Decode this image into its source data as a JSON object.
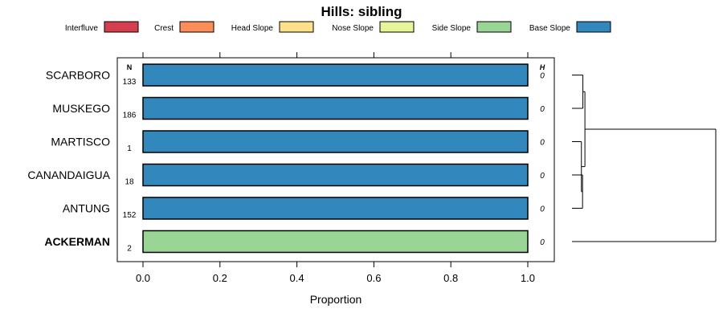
{
  "chart_data": {
    "type": "bar",
    "title": "Hills: sibling",
    "xlabel": "Proportion",
    "ylabel": "",
    "xlim": [
      -0.06,
      1.07
    ],
    "xticks": [
      0.0,
      0.2,
      0.4,
      0.6,
      0.8,
      1.0
    ],
    "xtick_labels": [
      "0.0",
      "0.2",
      "0.4",
      "0.6",
      "0.8",
      "1.0"
    ],
    "legend": {
      "placement": "top",
      "items": [
        {
          "name": "Interfluve",
          "color": "#D53E4F"
        },
        {
          "name": "Crest",
          "color": "#FC8D59"
        },
        {
          "name": "Head Slope",
          "color": "#FEE08B"
        },
        {
          "name": "Nose Slope",
          "color": "#E6F598"
        },
        {
          "name": "Side Slope",
          "color": "#99D594"
        },
        {
          "name": "Base Slope",
          "color": "#3288BD"
        }
      ]
    },
    "column_headers": {
      "n": "N",
      "h": "H"
    },
    "categories": [
      "SCARBORO",
      "MUSKEGO",
      "MARTISCO",
      "CANANDAIGUA",
      "ANTUNG",
      "ACKERMAN"
    ],
    "bold_category": "ACKERMAN",
    "rows": [
      {
        "name": "SCARBORO",
        "n": "133",
        "h": "0",
        "segments": [
          {
            "class": "Base Slope",
            "value": 1.0
          }
        ]
      },
      {
        "name": "MUSKEGO",
        "n": "186",
        "h": "0",
        "segments": [
          {
            "class": "Base Slope",
            "value": 1.0
          }
        ]
      },
      {
        "name": "MARTISCO",
        "n": "1",
        "h": "0",
        "segments": [
          {
            "class": "Base Slope",
            "value": 1.0
          }
        ]
      },
      {
        "name": "CANANDAIGUA",
        "n": "18",
        "h": "0",
        "segments": [
          {
            "class": "Base Slope",
            "value": 1.0
          }
        ]
      },
      {
        "name": "ANTUNG",
        "n": "152",
        "h": "0",
        "segments": [
          {
            "class": "Base Slope",
            "value": 1.0
          }
        ]
      },
      {
        "name": "ACKERMAN",
        "n": "2",
        "h": "0",
        "segments": [
          {
            "class": "Side Slope",
            "value": 1.0
          }
        ]
      }
    ],
    "dendrogram": {
      "type": "hierarchical-clustering",
      "merges": [
        {
          "members": [
            "SCARBORO",
            "MUSKEGO"
          ],
          "height": 0.02
        },
        {
          "members": [
            "CANANDAIGUA",
            "ANTUNG"
          ],
          "height": 0.04
        },
        {
          "members": [
            "MARTISCO",
            "CANANDAIGUA+ANTUNG"
          ],
          "height": 0.06
        },
        {
          "members": [
            "SCARBORO+MUSKEGO",
            "MARTISCO+CANANDAIGUA+ANTUNG"
          ],
          "height": 0.09
        },
        {
          "members": [
            "ALL_BASE",
            "ACKERMAN"
          ],
          "height": 1.0
        }
      ]
    }
  }
}
